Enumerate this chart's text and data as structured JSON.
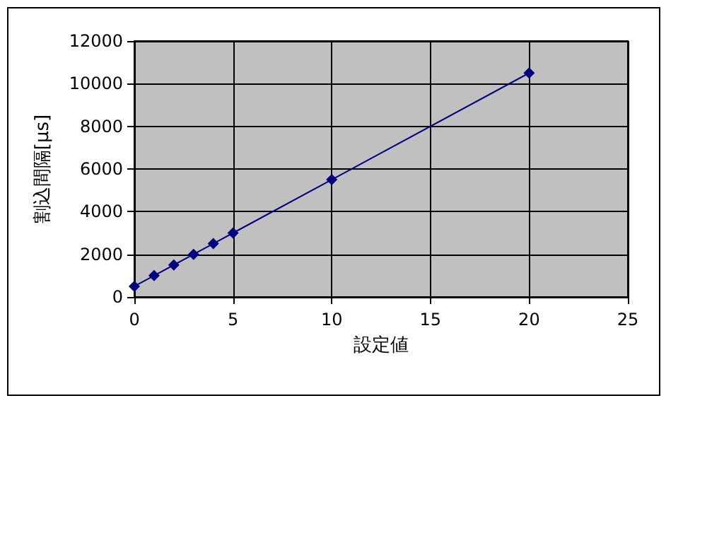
{
  "chart_data": {
    "type": "line",
    "xlabel": "設定値",
    "ylabel": "割込間隔[μs]",
    "x": [
      0,
      1,
      2,
      3,
      4,
      5,
      10,
      20
    ],
    "series": [
      {
        "color": "#000080",
        "values": [
          500,
          1000,
          1500,
          2000,
          2500,
          3000,
          5500,
          10500
        ]
      }
    ],
    "xlim": [
      0,
      25
    ],
    "xticks": [
      0,
      5,
      10,
      15,
      20,
      25
    ],
    "ylim": [
      0,
      12000
    ],
    "yticks": [
      0,
      2000,
      4000,
      6000,
      8000,
      10000,
      12000
    ],
    "grid": true,
    "marker": "diamond",
    "line_style": "solid"
  }
}
